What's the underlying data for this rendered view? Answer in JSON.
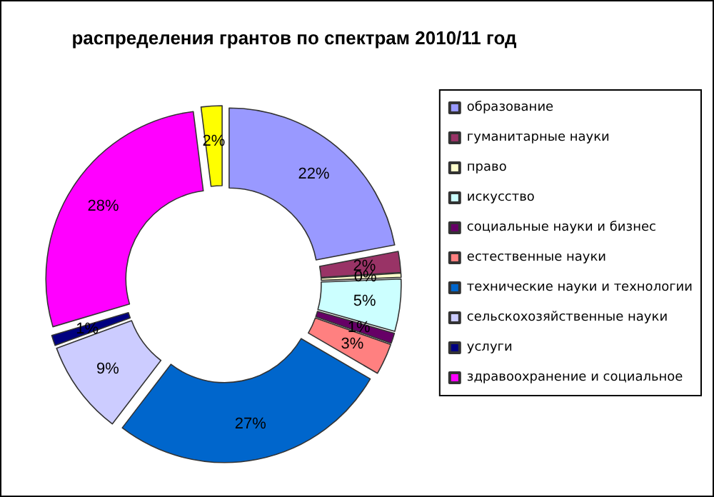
{
  "chart_data": {
    "type": "donut",
    "title": "распределения грантов по спектрам 2010/11 год",
    "categories": [
      "образование",
      "гуманитарные науки",
      "право",
      "искусство",
      "социальные науки и бизнес",
      "естественные науки",
      "технические науки и технологии",
      "сельскохозяйственные науки",
      "услуги",
      "здравоохранение и социальное",
      null
    ],
    "values": [
      22,
      2,
      0.4,
      5,
      1,
      3,
      27,
      9,
      1,
      27.6,
      2
    ],
    "value_labels": [
      "22%",
      "2%",
      "0%",
      "5%",
      "1%",
      "3%",
      "27%",
      "9%",
      "1%",
      "28%",
      "2%"
    ],
    "colors": [
      "#9999ff",
      "#993366",
      "#ffffcc",
      "#ccffff",
      "#660066",
      "#ff8080",
      "#0066cc",
      "#ccccff",
      "#000080",
      "#ff00ff",
      "#ffff00"
    ],
    "legend": "right"
  }
}
